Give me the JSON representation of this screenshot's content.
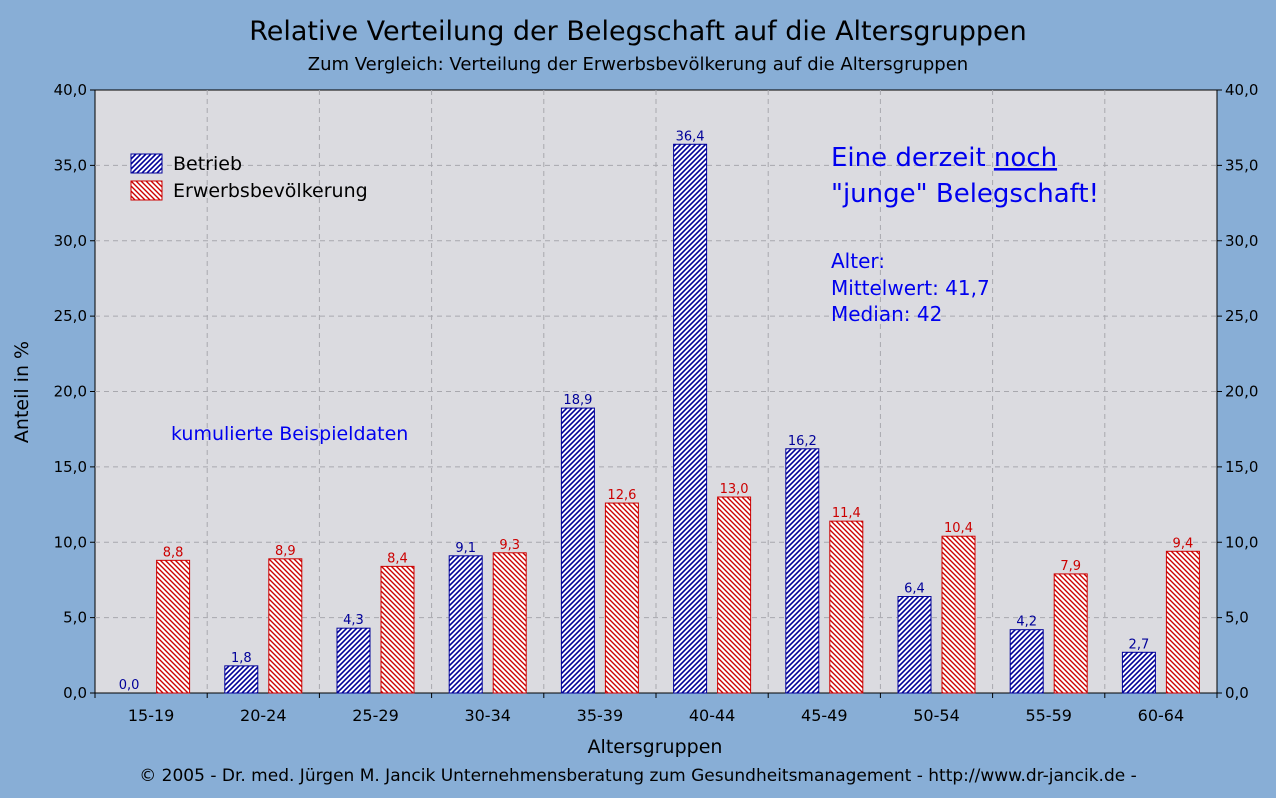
{
  "chart_data": {
    "type": "bar",
    "title": "Relative Verteilung der Belegschaft auf die Altersgruppen",
    "subtitle": "Zum Vergleich: Verteilung der Erwerbsbevölkerung auf die Altersgruppen",
    "xlabel": "Altersgruppen",
    "ylabel": "Anteil in %",
    "ylim": [
      0,
      40
    ],
    "yticks": [
      "0,0",
      "5,0",
      "10,0",
      "15,0",
      "20,0",
      "25,0",
      "30,0",
      "35,0",
      "40,0"
    ],
    "grid": true,
    "legend_position": "top-left",
    "categories": [
      "15-19",
      "20-24",
      "25-29",
      "30-34",
      "35-39",
      "40-44",
      "45-49",
      "50-54",
      "55-59",
      "60-64"
    ],
    "series": [
      {
        "name": "Betrieb",
        "color": "#000099",
        "values": [
          0.0,
          1.8,
          4.3,
          9.1,
          18.9,
          36.4,
          16.2,
          6.4,
          4.2,
          2.7
        ],
        "labels": [
          "0,0",
          "1,8",
          "4,3",
          "9,1",
          "18,9",
          "36,4",
          "16,2",
          "6,4",
          "4,2",
          "2,7"
        ]
      },
      {
        "name": "Erwerbsbevölkerung",
        "color": "#cc0000",
        "values": [
          8.8,
          8.9,
          8.4,
          9.3,
          12.6,
          13.0,
          11.4,
          10.4,
          7.9,
          9.4
        ],
        "labels": [
          "8,8",
          "8,9",
          "8,4",
          "9,3",
          "12,6",
          "13,0",
          "11,4",
          "10,4",
          "7,9",
          "9,4"
        ]
      }
    ]
  },
  "annotations": {
    "headline_part1": "Eine derzeit ",
    "headline_underlined": "noch",
    "headline_line2": "\"junge\" Belegschaft!",
    "alter_label": "Alter:",
    "mittelwert": "Mittelwert:  41,7",
    "median": "Median: 42",
    "kumuliert": "kumulierte Beispieldaten"
  },
  "footer": "© 2005 -  Dr. med. Jürgen M. Jancik Unternehmensberatung zum Gesundheitsmanagement - http://www.dr-jancik.de -",
  "colors": {
    "background": "#88aed6",
    "plot_area": "#dbdbe0",
    "annotation_blue": "#0000ee"
  }
}
